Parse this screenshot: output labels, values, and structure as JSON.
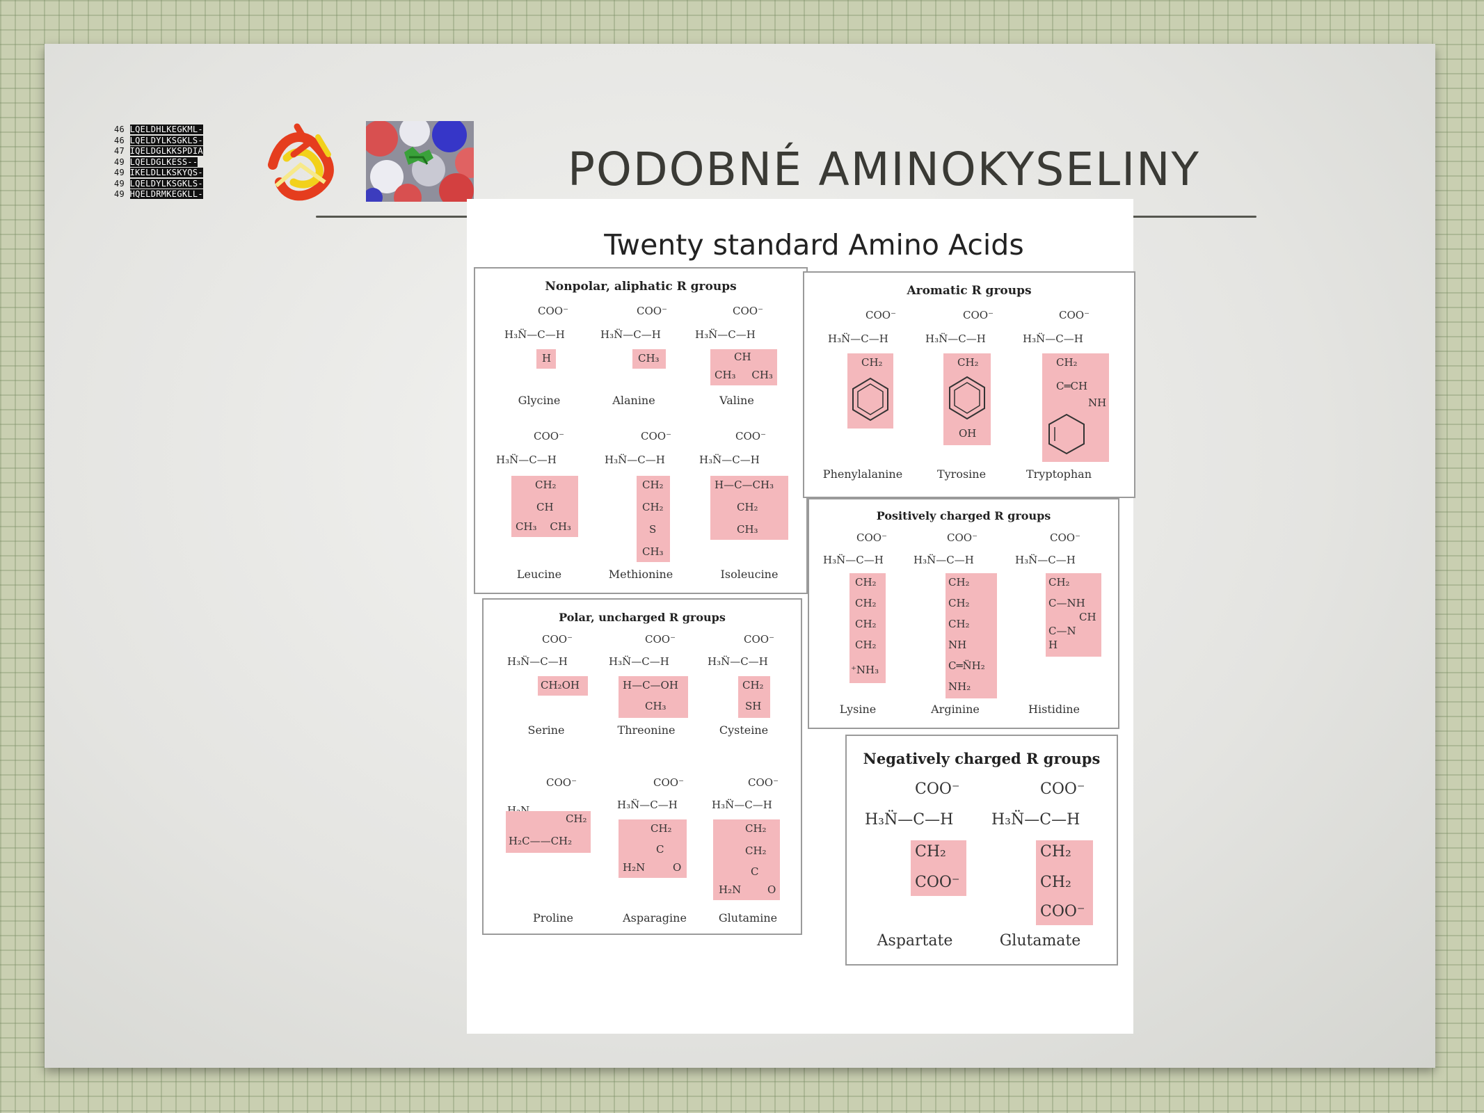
{
  "slide": {
    "title": "PODOBNÉ AMINOKYSELINY",
    "sequence_lines": [
      {
        "num": "46",
        "seq": "LQELDHLKEGKML-"
      },
      {
        "num": "46",
        "seq": "LQELDYLKSGKLS-"
      },
      {
        "num": "47",
        "seq": "IQELDGLKKSPDIA"
      },
      {
        "num": "49",
        "seq": "LQELDGLKESS--"
      },
      {
        "num": "49",
        "seq": "IKELDLLKSKYQS-"
      },
      {
        "num": "49",
        "seq": "LQELDYLKSGKLS-"
      },
      {
        "num": "49",
        "seq": "HQELDRMKEGKLL-"
      }
    ],
    "colors": {
      "background_grid": "#c9cfb1",
      "highlight": "#f4b8bc",
      "title_color": "#3a3a35"
    }
  },
  "figure": {
    "title": "Twenty standard Amino Acids",
    "groups": [
      {
        "title": "Nonpolar, aliphatic R groups",
        "acids": [
          {
            "name": "Glycine",
            "side_chain": [
              "H"
            ]
          },
          {
            "name": "Alanine",
            "side_chain": [
              "CH₃"
            ]
          },
          {
            "name": "Valine",
            "side_chain": [
              "CH",
              "CH₃ CH₃"
            ]
          },
          {
            "name": "Leucine",
            "side_chain": [
              "CH₂",
              "CH",
              "CH₃ CH₃"
            ]
          },
          {
            "name": "Methionine",
            "side_chain": [
              "CH₂",
              "CH₂",
              "S",
              "CH₃"
            ]
          },
          {
            "name": "Isoleucine",
            "side_chain": [
              "H—C—CH₃",
              "CH₂",
              "CH₃"
            ]
          }
        ]
      },
      {
        "title": "Aromatic R groups",
        "acids": [
          {
            "name": "Phenylalanine",
            "side_chain": [
              "CH₂"
            ]
          },
          {
            "name": "Tyrosine",
            "side_chain": [
              "CH₂",
              "OH"
            ]
          },
          {
            "name": "Tryptophan",
            "side_chain": [
              "CH₂",
              "C═CH",
              "NH"
            ]
          }
        ]
      },
      {
        "title": "Positively charged R groups",
        "acids": [
          {
            "name": "Lysine",
            "side_chain": [
              "CH₂",
              "CH₂",
              "CH₂",
              "CH₂",
              "⁺NH₃"
            ]
          },
          {
            "name": "Arginine",
            "side_chain": [
              "CH₂",
              "CH₂",
              "CH₂",
              "NH",
              "C═N̈H₂",
              "NH₂"
            ]
          },
          {
            "name": "Histidine",
            "side_chain": [
              "CH₂",
              "C—NH",
              "CH",
              "C—N",
              "H"
            ]
          }
        ]
      },
      {
        "title": "Polar, uncharged R groups",
        "acids": [
          {
            "name": "Serine",
            "side_chain": [
              "CH₂OH"
            ]
          },
          {
            "name": "Threonine",
            "side_chain": [
              "H—C—OH",
              "CH₃"
            ]
          },
          {
            "name": "Cysteine",
            "side_chain": [
              "CH₂",
              "SH"
            ]
          },
          {
            "name": "Proline",
            "side_chain": [
              "CH₂",
              "H₂C——CH₂"
            ]
          },
          {
            "name": "Asparagine",
            "side_chain": [
              "CH₂",
              "C",
              "H₂N",
              "O"
            ]
          },
          {
            "name": "Glutamine",
            "side_chain": [
              "CH₂",
              "CH₂",
              "C",
              "H₂N",
              "O"
            ]
          }
        ]
      },
      {
        "title": "Negatively charged R groups",
        "acids": [
          {
            "name": "Aspartate",
            "side_chain": [
              "CH₂",
              "COO⁻"
            ]
          },
          {
            "name": "Glutamate",
            "side_chain": [
              "CH₂",
              "CH₂",
              "COO⁻"
            ]
          }
        ]
      }
    ],
    "backbone": {
      "carboxyl": "COO⁻",
      "amine_carbon": "H₃N̈—C—H",
      "amine_carbon_ring": "H₂N"
    }
  }
}
